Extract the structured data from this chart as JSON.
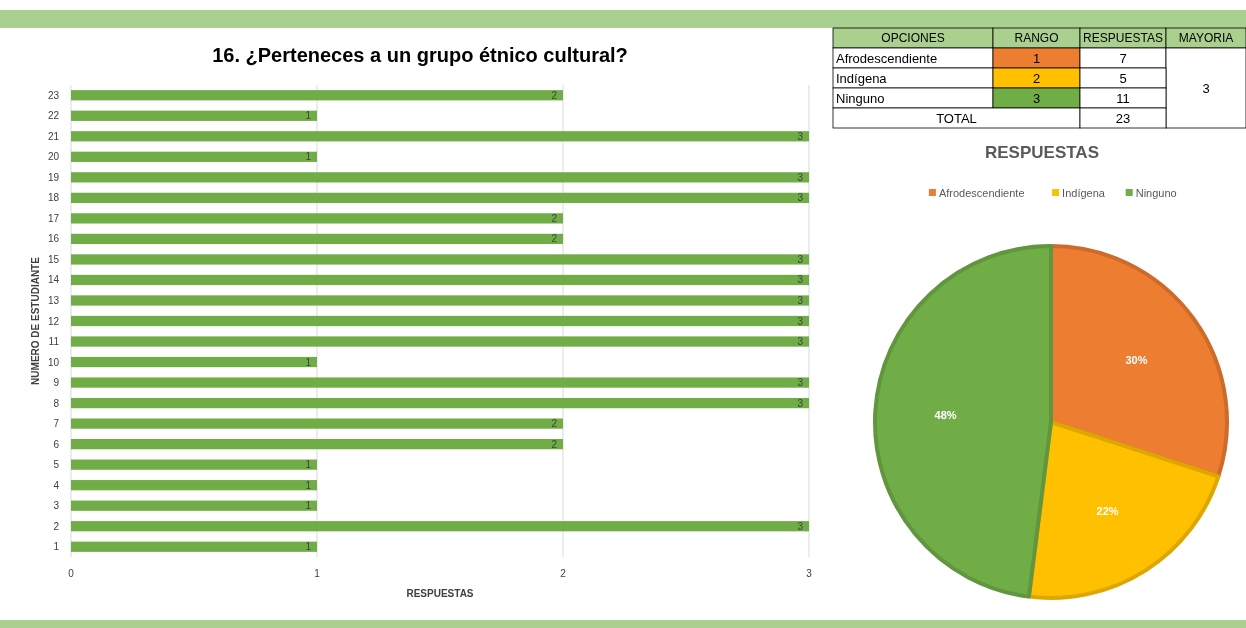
{
  "chart_data": [
    {
      "type": "bar",
      "title": "16.  ¿Perteneces a un grupo étnico cultural?",
      "xlabel": "RESPUESTAS",
      "ylabel": "NUMERO DE ESTUDIANTE",
      "orientation": "horizontal",
      "categories": [
        "23",
        "22",
        "21",
        "20",
        "19",
        "18",
        "17",
        "16",
        "15",
        "14",
        "13",
        "12",
        "11",
        "10",
        "9",
        "8",
        "7",
        "6",
        "5",
        "4",
        "3",
        "2",
        "1"
      ],
      "values": [
        2,
        1,
        3,
        1,
        3,
        3,
        2,
        2,
        3,
        3,
        3,
        3,
        3,
        1,
        3,
        3,
        2,
        2,
        1,
        1,
        1,
        3,
        1
      ],
      "color": "#70ad47",
      "xlim": [
        0,
        3
      ],
      "xticks": [
        0,
        1,
        2,
        3
      ],
      "grid": "x",
      "data_labels": true
    },
    {
      "type": "other",
      "categories": [
        "OPCIONES",
        "RANGO",
        "RESPUESTAS",
        "MAYORIA"
      ],
      "cells": [
        [
          "Afrodescendiente",
          "1",
          "7",
          "3"
        ],
        [
          "Indígena",
          "2",
          "5",
          null
        ],
        [
          "Ninguno",
          "3",
          "11",
          null
        ],
        [
          "TOTAL",
          null,
          "23",
          null
        ]
      ]
    },
    {
      "type": "pie",
      "title": "RESPUESTAS",
      "categories": [
        "Afrodescendiente",
        "Indígena",
        "Ninguno"
      ],
      "values": [
        30,
        22,
        48
      ],
      "colors": [
        "#ed7d31",
        "#ffc000",
        "#70ad47"
      ],
      "value_labels": [
        "30%",
        "22%",
        "48%"
      ],
      "legend": "top"
    }
  ]
}
